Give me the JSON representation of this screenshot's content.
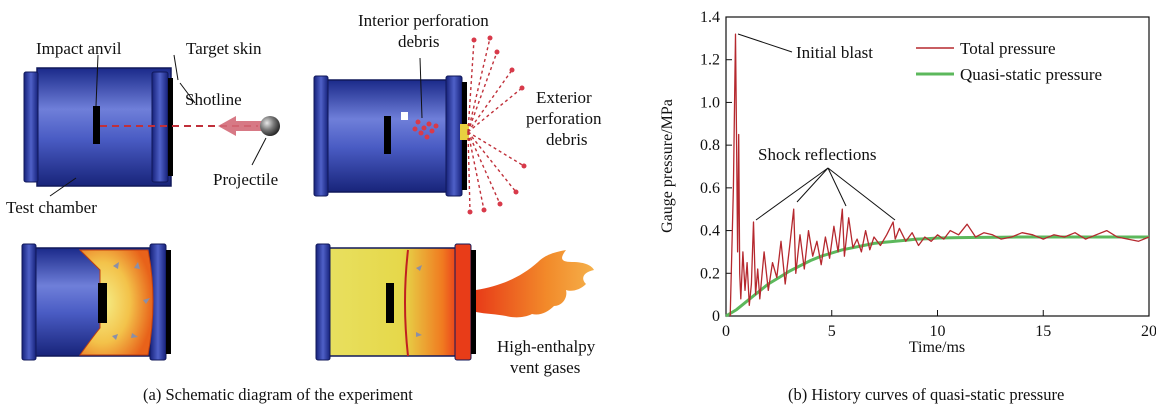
{
  "panel_a": {
    "caption": "(a) Schematic diagram of the experiment",
    "labels": {
      "impact_anvil": "Impact anvil",
      "target_skin": "Target skin",
      "shotline": "Shotline",
      "projectile": "Projectile",
      "test_chamber": "Test chamber",
      "interior_debris_1": "Interior perforation",
      "interior_debris_2": "debris",
      "exterior_debris_1": "Exterior",
      "exterior_debris_2": "perforation",
      "exterior_debris_3": "debris",
      "vent_gases_1": "High-enthalpy",
      "vent_gases_2": "vent gases"
    }
  },
  "panel_b": {
    "caption": "(b) History curves of quasi-static pressure",
    "annotations": {
      "initial_blast": "Initial blast",
      "shock_reflections": "Shock reflections"
    }
  },
  "chart_data": {
    "type": "line",
    "xlabel": "Time/ms",
    "ylabel": "Gauge pressure/MPa",
    "xlim": [
      0,
      20
    ],
    "ylim": [
      0,
      1.4
    ],
    "xticks": [
      "0",
      "5",
      "10",
      "15",
      "20"
    ],
    "yticks": [
      "0",
      "0.2",
      "0.4",
      "0.6",
      "0.8",
      "1.0",
      "1.2",
      "1.4"
    ],
    "legend_position": "top-right",
    "colors": {
      "total": "#b5282e",
      "quasi": "#5cb85c"
    },
    "series": [
      {
        "name": "Total pressure",
        "x": [
          0.2,
          0.35,
          0.45,
          0.5,
          0.55,
          0.6,
          0.65,
          0.7,
          0.8,
          0.9,
          1.0,
          1.1,
          1.2,
          1.3,
          1.4,
          1.5,
          1.6,
          1.8,
          2.0,
          2.2,
          2.4,
          2.6,
          2.8,
          3.0,
          3.2,
          3.3,
          3.5,
          3.7,
          3.9,
          4.1,
          4.3,
          4.5,
          4.7,
          4.9,
          5.1,
          5.3,
          5.5,
          5.6,
          5.8,
          6.0,
          6.2,
          6.4,
          6.6,
          6.8,
          7.0,
          7.3,
          7.6,
          7.9,
          8.0,
          8.2,
          8.5,
          8.8,
          9.1,
          9.4,
          9.7,
          10.0,
          10.3,
          10.6,
          11.0,
          11.4,
          11.8,
          12.2,
          12.6,
          13.0,
          13.5,
          14.0,
          14.5,
          15.0,
          15.5,
          16.0,
          16.5,
          17.0,
          17.5,
          18.0,
          18.5,
          19.0,
          19.5,
          20.0
        ],
        "values": [
          0.0,
          0.6,
          1.32,
          0.8,
          0.3,
          0.85,
          0.2,
          0.08,
          0.3,
          0.12,
          0.25,
          0.05,
          0.15,
          0.44,
          0.1,
          0.22,
          0.08,
          0.3,
          0.12,
          0.25,
          0.18,
          0.35,
          0.15,
          0.32,
          0.5,
          0.2,
          0.38,
          0.22,
          0.4,
          0.28,
          0.35,
          0.24,
          0.37,
          0.27,
          0.42,
          0.3,
          0.5,
          0.28,
          0.46,
          0.32,
          0.36,
          0.3,
          0.4,
          0.31,
          0.37,
          0.33,
          0.38,
          0.44,
          0.36,
          0.41,
          0.35,
          0.39,
          0.33,
          0.37,
          0.35,
          0.38,
          0.36,
          0.4,
          0.38,
          0.43,
          0.37,
          0.39,
          0.38,
          0.36,
          0.37,
          0.39,
          0.38,
          0.36,
          0.38,
          0.37,
          0.39,
          0.36,
          0.38,
          0.4,
          0.37,
          0.36,
          0.35,
          0.37
        ]
      },
      {
        "name": "Quasi-static pressure",
        "x": [
          0,
          0.5,
          1,
          1.5,
          2,
          2.5,
          3,
          3.5,
          4,
          4.5,
          5,
          5.5,
          6,
          6.5,
          7,
          7.5,
          8,
          8.5,
          9,
          9.5,
          10,
          11,
          12,
          13,
          14,
          15,
          16,
          17,
          18,
          19,
          20
        ],
        "values": [
          0.0,
          0.03,
          0.07,
          0.11,
          0.15,
          0.18,
          0.21,
          0.235,
          0.26,
          0.28,
          0.295,
          0.31,
          0.32,
          0.33,
          0.34,
          0.345,
          0.35,
          0.355,
          0.36,
          0.362,
          0.365,
          0.367,
          0.368,
          0.369,
          0.37,
          0.37,
          0.37,
          0.37,
          0.37,
          0.37,
          0.37
        ]
      }
    ]
  }
}
